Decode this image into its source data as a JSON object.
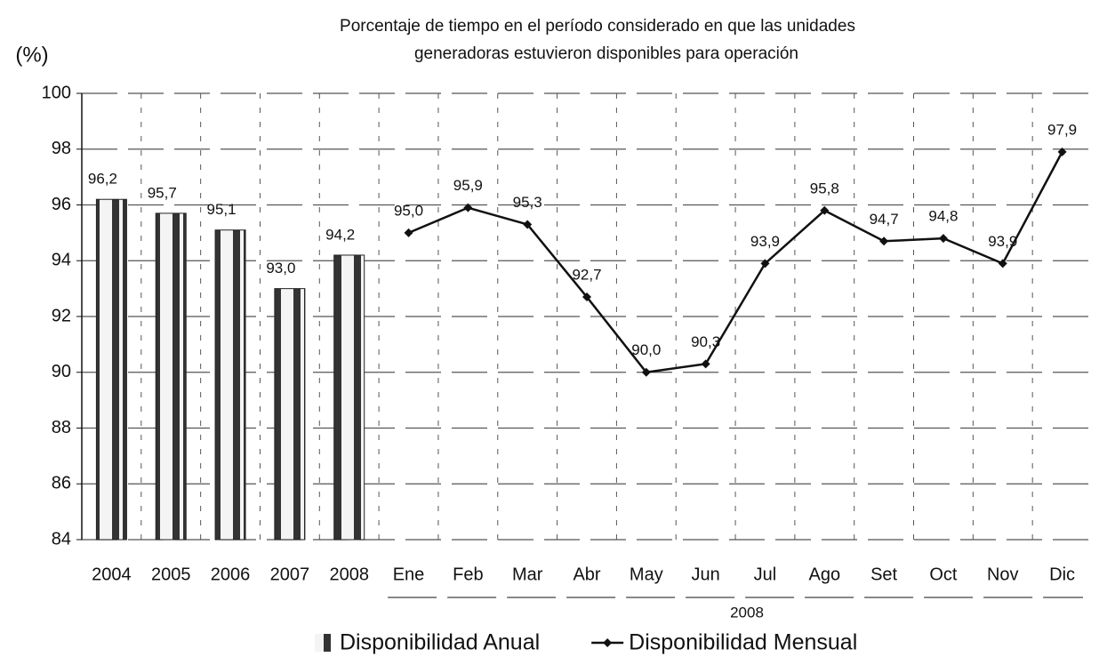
{
  "chart_data": {
    "type": "bar_line",
    "title": [
      "Porcentaje de tiempo en el período considerado en que las unidades",
      "generadoras estuvieron disponibles para operación"
    ],
    "y_label": "(%)",
    "categories": [
      "2004",
      "2005",
      "2006",
      "2007",
      "2008",
      "Ene",
      "Feb",
      "Mar",
      "Abr",
      "May",
      "Jun",
      "Jul",
      "Ago",
      "Set",
      "Oct",
      "Nov",
      "Dic"
    ],
    "group_label": "2008",
    "series": [
      {
        "name": "Disponibilidad Anual",
        "type": "bar",
        "color": "#222222",
        "values": [
          96.2,
          95.7,
          95.1,
          93.0,
          94.2,
          null,
          null,
          null,
          null,
          null,
          null,
          null,
          null,
          null,
          null,
          null,
          null
        ],
        "value_labels": [
          "96,2",
          "95,7",
          "95,1",
          "93,0",
          "94,2",
          null,
          null,
          null,
          null,
          null,
          null,
          null,
          null,
          null,
          null,
          null,
          null
        ]
      },
      {
        "name": "Disponibilidad Mensual",
        "type": "line",
        "color": "#111111",
        "values": [
          null,
          null,
          null,
          null,
          null,
          95.0,
          95.9,
          95.3,
          92.7,
          90.0,
          90.3,
          93.9,
          95.8,
          94.7,
          94.8,
          93.9,
          97.9
        ],
        "value_labels": [
          null,
          null,
          null,
          null,
          null,
          "95,0",
          "95,9",
          "95,3",
          "92,7",
          "90,0",
          "90,3",
          "93,9",
          "95,8",
          "94,7",
          "94,8",
          "93,9",
          "97,9"
        ]
      }
    ],
    "ylim": [
      84,
      100
    ],
    "yticks": [
      84,
      86,
      88,
      90,
      92,
      94,
      96,
      98,
      100
    ],
    "grid": true,
    "legend": "bottom"
  }
}
